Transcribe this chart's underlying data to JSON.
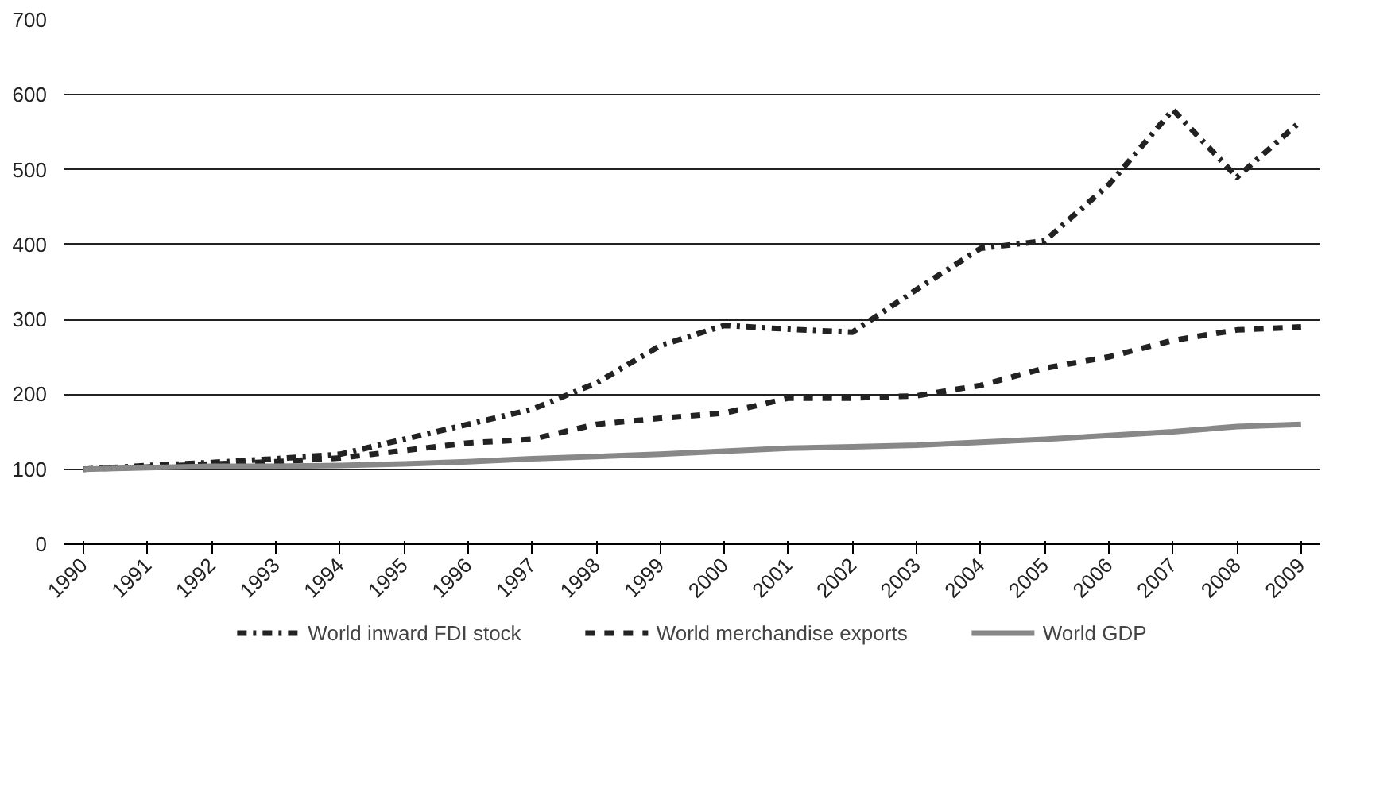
{
  "chart_data": {
    "type": "line",
    "categories": [
      "1990",
      "1991",
      "1992",
      "1993",
      "1994",
      "1995",
      "1996",
      "1997",
      "1998",
      "1999",
      "2000",
      "2001",
      "2002",
      "2003",
      "2004",
      "2005",
      "2006",
      "2007",
      "2008",
      "2009"
    ],
    "series": [
      {
        "name": "World inward FDI stock",
        "color": "#222222",
        "line_style": "dashdot",
        "values": [
          100,
          105,
          109,
          114,
          120,
          140,
          160,
          180,
          215,
          265,
          292,
          287,
          283,
          340,
          395,
          405,
          480,
          580,
          490,
          565
        ]
      },
      {
        "name": "World merchandise exports",
        "color": "#222222",
        "line_style": "dashed",
        "values": [
          100,
          103,
          107,
          110,
          115,
          125,
          135,
          140,
          160,
          168,
          175,
          195,
          195,
          198,
          212,
          235,
          250,
          272,
          286,
          290
        ]
      },
      {
        "name": "World GDP",
        "color": "#888888",
        "line_style": "solid",
        "values": [
          100,
          102,
          104,
          104,
          105,
          107,
          110,
          114,
          117,
          120,
          124,
          128,
          130,
          132,
          136,
          140,
          145,
          150,
          157,
          160
        ]
      }
    ],
    "ylim": [
      0,
      700
    ],
    "yticks": [
      0,
      100,
      200,
      300,
      400,
      500,
      600,
      700
    ],
    "grid": "y",
    "legend": "bottom"
  }
}
